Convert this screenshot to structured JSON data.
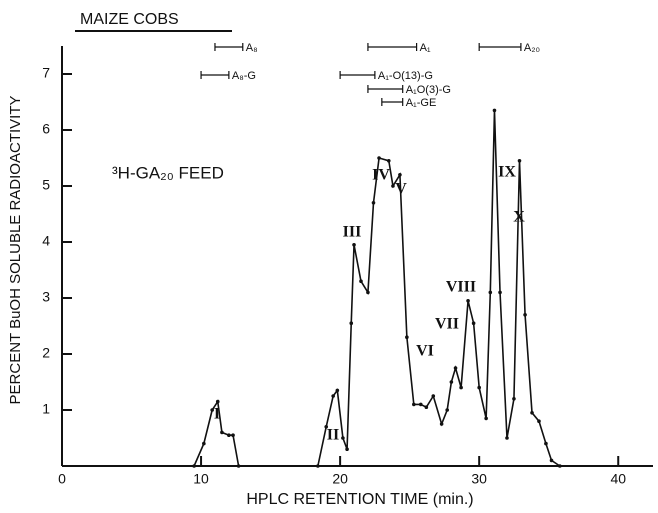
{
  "chart_data": {
    "type": "line",
    "title": "MAIZE COBS",
    "annotation": "³H-GA₂₀ FEED",
    "xlabel": "HPLC RETENTION TIME (min.)",
    "ylabel": "PERCENT BuOH SOLUBLE RADIOACTIVITY",
    "xlim": [
      0,
      42.5
    ],
    "ylim": [
      0,
      7.5
    ],
    "xticks": [
      0,
      10,
      20,
      30,
      40
    ],
    "yticks": [
      1,
      2,
      3,
      4,
      5,
      6,
      7
    ],
    "color": "#111111",
    "x": [
      9.5,
      10.2,
      10.8,
      11.2,
      11.5,
      12.0,
      12.3,
      12.7,
      18.4,
      19.0,
      19.5,
      19.8,
      20.2,
      20.5,
      20.8,
      21.0,
      21.5,
      22.0,
      22.4,
      22.8,
      23.5,
      23.8,
      24.3,
      24.8,
      25.3,
      25.8,
      26.2,
      26.7,
      27.3,
      27.7,
      28.0,
      28.3,
      28.7,
      29.2,
      29.6,
      30.0,
      30.5,
      30.8,
      31.1,
      31.5,
      32.0,
      32.5,
      32.9,
      33.3,
      33.8,
      34.3,
      34.8,
      35.2,
      35.8
    ],
    "values": [
      0,
      0.4,
      1.0,
      1.15,
      0.6,
      0.55,
      0.55,
      0,
      0,
      0.7,
      1.25,
      1.35,
      0.5,
      0.3,
      2.55,
      3.95,
      3.3,
      3.1,
      4.7,
      5.5,
      5.45,
      5.0,
      5.2,
      2.3,
      1.1,
      1.1,
      1.05,
      1.25,
      0.75,
      1.0,
      1.5,
      1.75,
      1.4,
      2.95,
      2.55,
      1.4,
      0.85,
      3.1,
      6.35,
      3.1,
      0.5,
      1.2,
      5.45,
      2.7,
      0.95,
      0.8,
      0.4,
      0.1,
      0
    ],
    "peaks": [
      "I",
      "II",
      "III",
      "IV",
      "V",
      "VI",
      "VII",
      "VIII",
      "IX",
      "X"
    ],
    "ranges": [
      {
        "label": "A₈",
        "start": 11,
        "end": 13
      },
      {
        "label": "A₈-G",
        "start": 10,
        "end": 12
      },
      {
        "label": "A₁",
        "start": 22,
        "end": 25.5
      },
      {
        "label": "A₁-O(13)-G",
        "start": 20,
        "end": 22.5
      },
      {
        "label": "A₁O(3)-G",
        "start": 22,
        "end": 24.5
      },
      {
        "label": "A₁-GE",
        "start": 23,
        "end": 24.5
      },
      {
        "label": "A₂₀",
        "start": 30,
        "end": 33
      }
    ]
  }
}
